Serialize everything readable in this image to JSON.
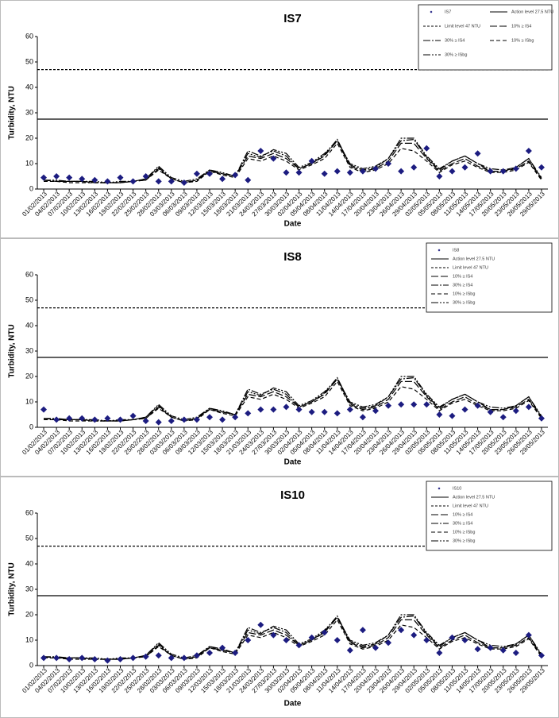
{
  "chart_data": [
    {
      "type": "line",
      "title": "IS7",
      "xlabel": "Date",
      "ylabel": "Turbidity, NTU",
      "legend_columns": 2,
      "categories": [
        "01/02/2013",
        "04/02/2013",
        "07/02/2013",
        "10/02/2013",
        "13/02/2013",
        "16/02/2013",
        "19/02/2013",
        "22/02/2013",
        "25/02/2013",
        "28/02/2013",
        "03/03/2013",
        "06/03/2013",
        "09/03/2013",
        "12/03/2013",
        "15/03/2013",
        "18/03/2013",
        "21/03/2013",
        "24/03/2013",
        "27/03/2013",
        "30/03/2013",
        "02/04/2013",
        "05/04/2013",
        "08/04/2013",
        "11/04/2013",
        "14/04/2013",
        "17/04/2013",
        "20/04/2013",
        "23/04/2013",
        "26/04/2013",
        "29/04/2013",
        "02/05/2013",
        "05/05/2013",
        "08/05/2013",
        "11/05/2013",
        "14/05/2013",
        "17/05/2013",
        "20/05/2013",
        "23/05/2013",
        "26/05/2013",
        "29/05/2013"
      ],
      "ylim": [
        0,
        60
      ],
      "yticks": [
        0,
        10,
        20,
        30,
        40,
        50,
        60
      ],
      "ref_lines": [
        {
          "name": "Action level 27.5 NTU",
          "value": 27.5,
          "dash": "none"
        },
        {
          "name": "Limit level 47 NTU",
          "value": 47,
          "dash": "3,2"
        }
      ],
      "series": [
        {
          "name": "IS7",
          "type": "scatter",
          "color": "#1c1c80",
          "values": [
            4.5,
            5,
            4.5,
            4,
            3.5,
            3,
            4.5,
            3,
            5,
            3,
            3,
            2.5,
            6,
            6,
            4,
            5.5,
            3.5,
            15,
            12,
            6.5,
            6.5,
            11,
            6,
            7,
            6.5,
            7,
            8,
            10,
            7,
            8.5,
            16,
            5,
            7,
            8.5,
            14,
            7,
            7,
            8,
            15,
            8.5
          ]
        },
        {
          "name": "10% ≥ IS4",
          "type": "line",
          "color": "#000",
          "dash": "9,3",
          "values": [
            3.5,
            3,
            3,
            3,
            2.5,
            2.5,
            2.5,
            3,
            3.5,
            8,
            4,
            2.5,
            3.5,
            7,
            6,
            5,
            13,
            12,
            14,
            12,
            8,
            10,
            13,
            19,
            9,
            7,
            8,
            11,
            18,
            18,
            12,
            7,
            10,
            12,
            9,
            7,
            7,
            8,
            11,
            4
          ]
        },
        {
          "name": "30% ≥ IS4",
          "type": "line",
          "color": "#000",
          "dash": "9,2,2,2",
          "values": [
            3.5,
            3,
            3,
            3,
            2.5,
            2.5,
            2.5,
            3,
            4,
            8.5,
            4,
            2.5,
            3.5,
            7.5,
            6,
            5,
            15,
            13,
            15,
            13,
            8,
            10,
            13.5,
            19.5,
            9.5,
            7.5,
            8.5,
            12,
            19,
            19.5,
            12.5,
            7.5,
            11,
            13,
            10,
            7,
            7,
            8.5,
            12,
            4
          ]
        },
        {
          "name": "10% ≥ ISbg",
          "type": "line",
          "color": "#000",
          "dash": "5,3",
          "values": [
            3,
            3,
            2.5,
            2.5,
            2.5,
            2.5,
            2.5,
            3,
            3.5,
            7.5,
            4,
            2.5,
            3,
            7,
            5.5,
            4.5,
            12,
            11,
            13,
            11,
            7.5,
            9.5,
            12,
            18,
            8.5,
            6.5,
            7.5,
            10,
            16,
            15,
            11,
            6.5,
            9.5,
            11,
            8.5,
            6.5,
            6.5,
            7.5,
            10.5,
            3.5
          ]
        },
        {
          "name": "30% ≥ ISbg",
          "type": "line",
          "color": "#000",
          "dash": "9,2,2,2,2,2",
          "values": [
            3.5,
            3.5,
            3,
            3,
            3,
            2.5,
            3,
            3,
            4,
            9,
            4.5,
            3,
            4,
            7.5,
            6.5,
            5,
            14,
            12.5,
            15.5,
            14,
            8.5,
            10.5,
            14,
            19,
            10,
            8,
            9,
            12,
            20,
            20,
            13,
            8,
            11,
            13,
            10,
            8,
            7.5,
            8.5,
            12,
            4.5
          ]
        }
      ]
    },
    {
      "type": "line",
      "title": "IS8",
      "xlabel": "Date",
      "ylabel": "Turbidity, NTU",
      "legend_columns": 1,
      "categories": [
        "01/02/2013",
        "04/02/2013",
        "07/02/2013",
        "10/02/2013",
        "13/02/2013",
        "16/02/2013",
        "19/02/2013",
        "22/02/2013",
        "25/02/2013",
        "28/02/2013",
        "03/03/2013",
        "06/03/2013",
        "09/03/2013",
        "12/03/2013",
        "15/03/2013",
        "18/03/2013",
        "21/03/2013",
        "24/03/2013",
        "27/03/2013",
        "30/03/2013",
        "02/04/2013",
        "05/04/2013",
        "08/04/2013",
        "11/04/2013",
        "14/04/2013",
        "17/04/2013",
        "20/04/2013",
        "23/04/2013",
        "26/04/2013",
        "29/04/2013",
        "02/05/2013",
        "05/05/2013",
        "08/05/2013",
        "11/05/2013",
        "14/05/2013",
        "17/05/2013",
        "20/05/2013",
        "23/05/2013",
        "26/05/2013",
        "29/05/2013"
      ],
      "ylim": [
        0,
        60
      ],
      "yticks": [
        0,
        10,
        20,
        30,
        40,
        50,
        60
      ],
      "ref_lines": [
        {
          "name": "Action level 27.5 NTU",
          "value": 27.5,
          "dash": "none"
        },
        {
          "name": "Limit level 47 NTU",
          "value": 47,
          "dash": "3,2"
        }
      ],
      "series": [
        {
          "name": "IS8",
          "type": "scatter",
          "color": "#1c1c80",
          "values": [
            7,
            3,
            3.5,
            3.5,
            3,
            3.5,
            3,
            4.5,
            2.5,
            2,
            2.5,
            3,
            3,
            4,
            3,
            4,
            5.5,
            7,
            7,
            8,
            7,
            6,
            6,
            5.5,
            7,
            4,
            6.5,
            8.5,
            9,
            9,
            9,
            5,
            4.5,
            7,
            8.5,
            6,
            4,
            6.5,
            8,
            3.5
          ]
        },
        {
          "name": "10% ≥ IS4",
          "type": "line",
          "color": "#000",
          "dash": "9,3",
          "values": [
            3.5,
            3,
            3,
            3,
            2.5,
            2.5,
            2.5,
            3,
            3.5,
            8,
            4,
            2.5,
            3.5,
            7,
            6,
            5,
            13,
            12,
            14,
            12,
            8,
            10,
            13,
            19,
            9,
            7,
            8,
            11,
            18,
            18,
            12,
            7,
            10,
            12,
            9,
            7,
            7,
            8,
            11,
            4
          ]
        },
        {
          "name": "30% ≥ IS4",
          "type": "line",
          "color": "#000",
          "dash": "9,2,2,2",
          "values": [
            3.5,
            3,
            3,
            3,
            2.5,
            2.5,
            2.5,
            3,
            4,
            8.5,
            4,
            2.5,
            3.5,
            7.5,
            6,
            5,
            15,
            13,
            15,
            13,
            8,
            10,
            13.5,
            19.5,
            9.5,
            7.5,
            8.5,
            12,
            19,
            19.5,
            12.5,
            7.5,
            11,
            13,
            10,
            7,
            7,
            8.5,
            12,
            4
          ]
        },
        {
          "name": "10% ≥ ISbg",
          "type": "line",
          "color": "#000",
          "dash": "5,3",
          "values": [
            3,
            3,
            2.5,
            2.5,
            2.5,
            2.5,
            2.5,
            3,
            3.5,
            7.5,
            4,
            2.5,
            3,
            7,
            5.5,
            4.5,
            12,
            11,
            13,
            11,
            7.5,
            9.5,
            12,
            18,
            8.5,
            6.5,
            7.5,
            10,
            16,
            15,
            11,
            6.5,
            9.5,
            11,
            8.5,
            6.5,
            6.5,
            7.5,
            10.5,
            3.5
          ]
        },
        {
          "name": "30% ≥ ISbg",
          "type": "line",
          "color": "#000",
          "dash": "9,2,2,2,2,2",
          "values": [
            3.5,
            3.5,
            3,
            3,
            3,
            2.5,
            3,
            3,
            4,
            9,
            4.5,
            3,
            4,
            7.5,
            6.5,
            5,
            14,
            12.5,
            15.5,
            14,
            8.5,
            10.5,
            14,
            19,
            10,
            8,
            9,
            12,
            20,
            20,
            13,
            8,
            11,
            13,
            10,
            8,
            7.5,
            8.5,
            12,
            4.5
          ]
        }
      ]
    },
    {
      "type": "line",
      "title": "IS10",
      "xlabel": "Date",
      "ylabel": "Turbidity, NTU",
      "legend_columns": 1,
      "categories": [
        "01/02/2013",
        "04/02/2013",
        "07/02/2013",
        "10/02/2013",
        "13/02/2013",
        "16/02/2013",
        "19/02/2013",
        "22/02/2013",
        "25/02/2013",
        "28/02/2013",
        "03/03/2013",
        "06/03/2013",
        "09/03/2013",
        "12/03/2013",
        "15/03/2013",
        "18/03/2013",
        "21/03/2013",
        "24/03/2013",
        "27/03/2013",
        "30/03/2013",
        "02/04/2013",
        "05/04/2013",
        "08/04/2013",
        "11/04/2013",
        "14/04/2013",
        "17/04/2013",
        "20/04/2013",
        "23/04/2013",
        "26/04/2013",
        "29/04/2013",
        "02/05/2013",
        "05/05/2013",
        "08/05/2013",
        "11/05/2013",
        "14/05/2013",
        "17/05/2013",
        "20/05/2013",
        "23/05/2013",
        "26/05/2013",
        "29/05/2013"
      ],
      "ylim": [
        0,
        60
      ],
      "yticks": [
        0,
        10,
        20,
        30,
        40,
        50,
        60
      ],
      "ref_lines": [
        {
          "name": "Action level 27.5 NTU",
          "value": 27.5,
          "dash": "none"
        },
        {
          "name": "Limit level 47 NTU",
          "value": 47,
          "dash": "3,2"
        }
      ],
      "series": [
        {
          "name": "IS10",
          "type": "scatter",
          "color": "#1c1c80",
          "values": [
            3,
            3,
            2.5,
            3,
            2.5,
            2,
            2.5,
            3,
            3.5,
            4,
            3,
            3,
            4,
            5,
            7,
            5,
            10,
            16,
            12,
            10,
            8,
            11,
            13,
            10,
            6,
            14,
            7,
            9,
            14,
            12,
            10,
            5,
            11,
            10,
            6.5,
            7,
            6,
            5,
            12,
            4
          ]
        },
        {
          "name": "10% ≥ IS4",
          "type": "line",
          "color": "#000",
          "dash": "9,3",
          "values": [
            3.5,
            3,
            3,
            3,
            2.5,
            2.5,
            2.5,
            3,
            3.5,
            8,
            4,
            2.5,
            3.5,
            7,
            6,
            5,
            13,
            12,
            14,
            12,
            8,
            10,
            13,
            19,
            9,
            7,
            8,
            11,
            18,
            18,
            12,
            7,
            10,
            12,
            9,
            7,
            7,
            8,
            11,
            4
          ]
        },
        {
          "name": "30% ≥ IS4",
          "type": "line",
          "color": "#000",
          "dash": "9,2,2,2",
          "values": [
            3.5,
            3,
            3,
            3,
            2.5,
            2.5,
            2.5,
            3,
            4,
            8.5,
            4,
            2.5,
            3.5,
            7.5,
            6,
            5,
            15,
            13,
            15,
            13,
            8,
            10,
            13.5,
            19.5,
            9.5,
            7.5,
            8.5,
            12,
            19,
            19.5,
            12.5,
            7.5,
            11,
            13,
            10,
            7,
            7,
            8.5,
            12,
            4
          ]
        },
        {
          "name": "10% ≥ ISbg",
          "type": "line",
          "color": "#000",
          "dash": "5,3",
          "values": [
            3,
            3,
            2.5,
            2.5,
            2.5,
            2.5,
            2.5,
            3,
            3.5,
            7.5,
            4,
            2.5,
            3,
            7,
            5.5,
            4.5,
            12,
            11,
            13,
            11,
            7.5,
            9.5,
            12,
            18,
            8.5,
            6.5,
            7.5,
            10,
            16,
            15,
            11,
            6.5,
            9.5,
            11,
            8.5,
            6.5,
            6.5,
            7.5,
            10.5,
            3.5
          ]
        },
        {
          "name": "30% ≥ ISbg",
          "type": "line",
          "color": "#000",
          "dash": "9,2,2,2,2,2",
          "values": [
            3.5,
            3.5,
            3,
            3,
            3,
            2.5,
            3,
            3,
            4,
            9,
            4.5,
            3,
            4,
            7.5,
            6.5,
            5,
            14,
            12.5,
            15.5,
            14,
            8.5,
            10.5,
            14,
            19,
            10,
            8,
            9,
            12,
            20,
            20,
            13,
            8,
            11,
            13,
            10,
            8,
            7.5,
            8.5,
            12,
            4.5
          ]
        }
      ]
    }
  ]
}
